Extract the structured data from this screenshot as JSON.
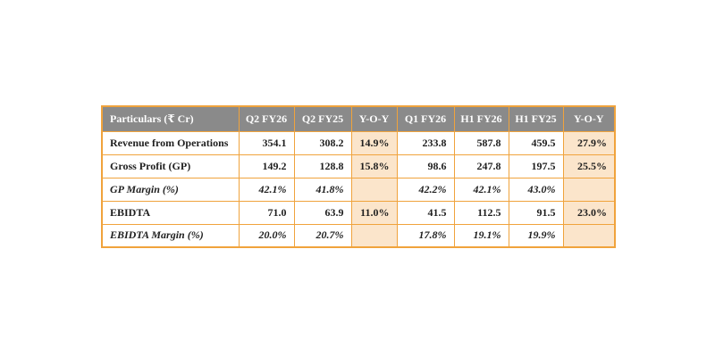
{
  "page": {
    "background": "#ffffff"
  },
  "table": {
    "title": "quarterly-financial-results",
    "columns": [
      "Particulars (₹ Cr)",
      "Q2 FY26",
      "Q2 FY25",
      "Y-O-Y",
      "Q1 FY26",
      "H1 FY26",
      "H1 FY25",
      "Y-O-Y"
    ],
    "highlight_column_indexes": [
      3,
      7
    ],
    "rows": [
      {
        "italic": false,
        "cells": [
          "Revenue from Operations",
          "354.1",
          "308.2",
          "14.9%",
          "233.8",
          "587.8",
          "459.5",
          "27.9%"
        ]
      },
      {
        "italic": false,
        "cells": [
          "Gross Profit (GP)",
          "149.2",
          "128.8",
          "15.8%",
          "98.6",
          "247.8",
          "197.5",
          "25.5%"
        ]
      },
      {
        "italic": true,
        "cells": [
          "GP Margin (%)",
          "42.1%",
          "41.8%",
          "",
          "42.2%",
          "42.1%",
          "43.0%",
          ""
        ]
      },
      {
        "italic": false,
        "cells": [
          "EBIDTA",
          "71.0",
          "63.9",
          "11.0%",
          "41.5",
          "112.5",
          "91.5",
          "23.0%"
        ]
      },
      {
        "italic": true,
        "cells": [
          "EBIDTA Margin (%)",
          "20.0%",
          "20.7%",
          "",
          "17.8%",
          "19.1%",
          "19.9%",
          ""
        ]
      }
    ],
    "colors": {
      "header_bg": "#8a8a8a",
      "header_text": "#ffffff",
      "border": "#F0A33C",
      "highlight_bg": "#FBE5CB"
    }
  }
}
